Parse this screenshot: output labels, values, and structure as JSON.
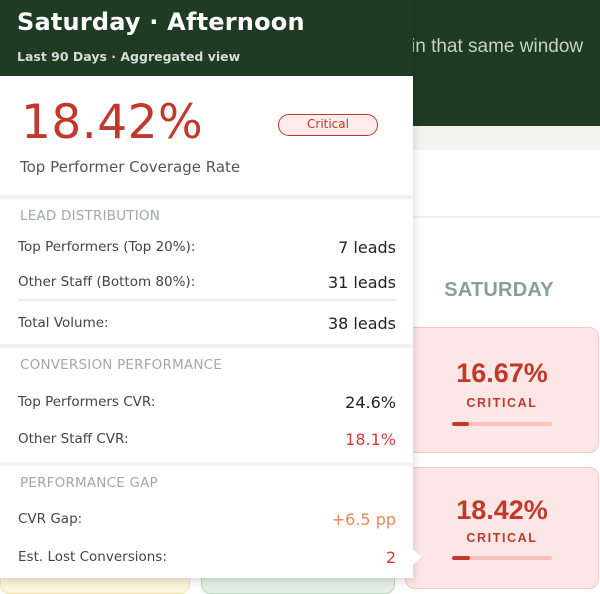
{
  "background": {
    "header_text": "in that same window",
    "day_column": {
      "label": "SATURDAY",
      "cells": [
        {
          "value": "16.67%",
          "status": "CRITICAL",
          "fill_fraction": 0.1667
        },
        {
          "value": "18.42%",
          "status": "CRITICAL",
          "fill_fraction": 0.1842
        }
      ]
    }
  },
  "tooltip": {
    "title": "Saturday · Afternoon",
    "subtitle": "Last 90 Days · Aggregated view",
    "rate_value": "18.42%",
    "rate_badge": "Critical",
    "rate_label": "Top Performer Coverage Rate",
    "lead_distribution": {
      "heading": "LEAD DISTRIBUTION",
      "top_label": "Top Performers (Top 20%):",
      "top_value": "7 leads",
      "other_label": "Other Staff (Bottom 80%):",
      "other_value": "31 leads",
      "total_label": "Total Volume:",
      "total_value": "38 leads"
    },
    "conversion_performance": {
      "heading": "CONVERSION PERFORMANCE",
      "top_label": "Top Performers CVR:",
      "top_value": "24.6%",
      "other_label": "Other Staff CVR:",
      "other_value": "18.1%"
    },
    "performance_gap": {
      "heading": "PERFORMANCE GAP",
      "gap_label": "CVR Gap:",
      "gap_value": "+6.5 pp",
      "lost_label": "Est. Lost Conversions:",
      "lost_value": "2"
    }
  },
  "colors": {
    "header_green": "#1f3b24",
    "critical_red": "#c0392b",
    "gap_orange": "#e8875a",
    "critical_cell_bg": "#fde7e6"
  }
}
